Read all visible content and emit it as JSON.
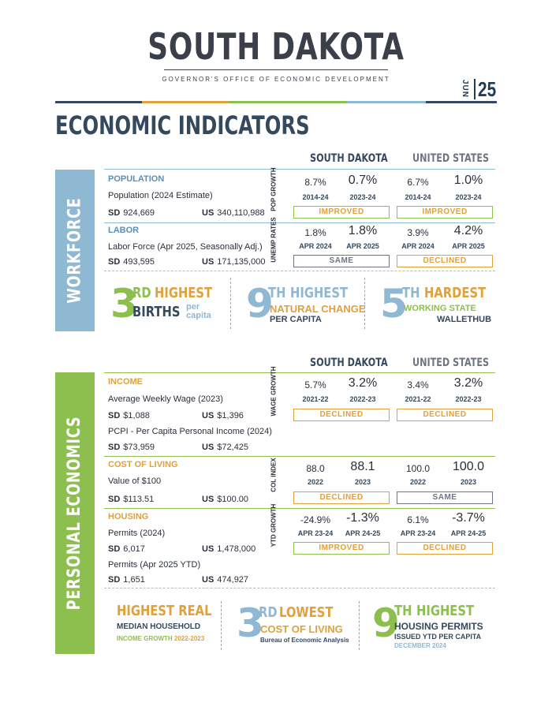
{
  "header": {
    "title": "SOUTH DAKOTA",
    "subtitle": "GOVERNOR'S OFFICE OF ECONOMIC DEVELOPMENT",
    "issue_month": "JUN",
    "issue_year": "25",
    "rule_colors": [
      "#34495e",
      "#e0a03a",
      "#8cbf4d",
      "#8fb8d2",
      "#34495e"
    ]
  },
  "page_title": "ECONOMIC INDICATORS",
  "colors": {
    "navy": "#34495e",
    "blue": "#8fb8d2",
    "green": "#8cbf4d",
    "orange": "#e0a03a",
    "gray": "#6e7582"
  },
  "workforce": {
    "label": "WORKFORCE",
    "col_sd": "SOUTH DAKOTA",
    "col_us": "UNITED STATES",
    "population": {
      "heading": "POPULATION",
      "desc": "Population (2024 Estimate)",
      "sd_label": "SD",
      "sd_value": "924,669",
      "us_label": "US",
      "us_value": "340,110,988",
      "metric": "POP GROWTH",
      "sd_v1": "8.7%",
      "sd_v2": "0.7%",
      "sd_y1": "2014-24",
      "sd_y2": "2023-24",
      "us_v1": "6.7%",
      "us_v2": "1.0%",
      "us_y1": "2014-24",
      "us_y2": "2023-24",
      "sd_status": "IMPROVED",
      "us_status": "IMPROVED"
    },
    "labor": {
      "heading": "LABOR",
      "desc": "Labor Force (Apr 2025, Seasonally Adj.)",
      "sd_label": "SD",
      "sd_value": "493,595",
      "us_label": "US",
      "us_value": "171,135,000",
      "metric": "UNEMP RATES",
      "sd_v1": "1.8%",
      "sd_v2": "1.8%",
      "sd_y1": "APR 2024",
      "sd_y2": "APR 2025",
      "us_v1": "3.9%",
      "us_v2": "4.2%",
      "us_y1": "APR 2024",
      "us_y2": "APR 2025",
      "sd_status": "SAME",
      "us_status": "DECLINED"
    },
    "highlights": [
      {
        "number": "3",
        "suffix": "RD",
        "line1": "HIGHEST",
        "line2": "BIRTHS",
        "line3": "per capita"
      },
      {
        "number": "9",
        "suffix": "TH",
        "line1": "HIGHEST",
        "line2": "NATURAL CHANGE",
        "line3": "PER CAPITA"
      },
      {
        "number": "5",
        "suffix": "TH",
        "line1": "HARDEST",
        "line2": "WORKING STATE",
        "line3": "WALLETHUB"
      }
    ]
  },
  "personal": {
    "label": "PERSONAL ECONOMICS",
    "col_sd": "SOUTH DAKOTA",
    "col_us": "UNITED STATES",
    "income": {
      "heading": "INCOME",
      "desc": "Average Weekly Wage (2023)",
      "sd_label": "SD",
      "sd_value": "$1,088",
      "us_label": "US",
      "us_value": "$1,396",
      "desc2": "PCPI - Per Capita Personal Income (2024)",
      "sd_value2": "$73,959",
      "us_value2": "$72,425",
      "metric": "WAGE GROWTH",
      "sd_v1": "5.7%",
      "sd_v2": "3.2%",
      "sd_y1": "2021-22",
      "sd_y2": "2022-23",
      "us_v1": "3.4%",
      "us_v2": "3.2%",
      "us_y1": "2021-22",
      "us_y2": "2022-23",
      "sd_status": "DECLINED",
      "us_status": "DECLINED"
    },
    "cost": {
      "heading": "COST OF LIVING",
      "desc": "Value of $100",
      "sd_label": "SD",
      "sd_value": "$113.51",
      "us_label": "US",
      "us_value": "$100.00",
      "metric": "COL INDEX",
      "sd_v1": "88.0",
      "sd_v2": "88.1",
      "sd_y1": "2022",
      "sd_y2": "2023",
      "us_v1": "100.0",
      "us_v2": "100.0",
      "us_y1": "2022",
      "us_y2": "2023",
      "sd_status": "DECLINED",
      "us_status": "SAME"
    },
    "housing": {
      "heading": "HOUSING",
      "desc": "Permits (2024)",
      "sd_label": "SD",
      "sd_value": "6,017",
      "us_label": "US",
      "us_value": "1,478,000",
      "desc2": "Permits (Apr 2025 YTD)",
      "sd_value2": "1,651",
      "us_value2": "474,927",
      "metric": "YTD GROWTH",
      "sd_v1": "-24.9%",
      "sd_v2": "-1.3%",
      "sd_y1": "APR 23-24",
      "sd_y2": "APR 24-25",
      "us_v1": "6.1%",
      "us_v2": "-3.7%",
      "us_y1": "APR 23-24",
      "us_y2": "APR 24-25",
      "sd_status": "IMPROVED",
      "us_status": "DECLINED"
    },
    "highlights": [
      {
        "line1": "HIGHEST REAL",
        "line2": "MEDIAN HOUSEHOLD",
        "line3": "INCOME GROWTH",
        "line3b": "2022-2023"
      },
      {
        "number": "3",
        "suffix": "RD",
        "line1": "LOWEST",
        "line2": "COST OF LIVING",
        "line3": "Bureau of Economic Analysis"
      },
      {
        "number": "9",
        "suffix": "TH",
        "line1": "HIGHEST",
        "line2": "HOUSING PERMITS",
        "line3": "ISSUED YTD PER CAPITA",
        "line4": "DECEMBER 2024"
      }
    ]
  }
}
